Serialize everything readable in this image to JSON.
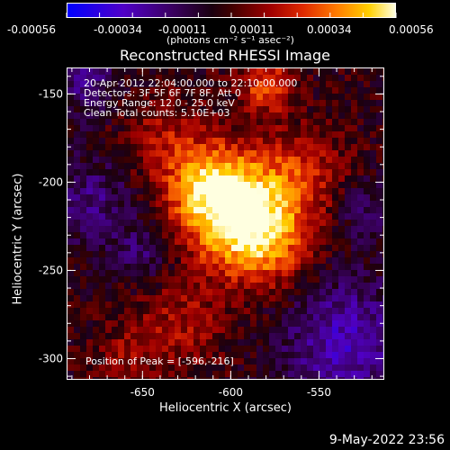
{
  "colorbar": {
    "tick_labels": [
      "-0.00056",
      "-0.00034",
      "-0.00011",
      "0.00011",
      "0.00034",
      "0.00056"
    ],
    "units": "(photons cm⁻² s⁻¹ asec⁻²)",
    "colors": [
      "#0000ff",
      "#5000c8",
      "#3a0060",
      "#1a0010",
      "#400000",
      "#a00000",
      "#e02a00",
      "#ff7a00",
      "#ffd000",
      "#ffffe0"
    ]
  },
  "annotations": {
    "line1": "20-Apr-2012 22:04:00.000 to 22:10:00.000",
    "line2": "Detectors: 3F 5F 6F 7F 8F, Att 0",
    "line3": "Energy Range: 12.0 - 25.0 keV",
    "line4": "Clean     Total counts: 5.10E+03",
    "peak": "Position of Peak = [-596,-216]"
  },
  "footer": {
    "date": "9-May-2022 23:56"
  },
  "chart_data": {
    "type": "heatmap",
    "title": "Reconstructed RHESSI Image",
    "xlabel": "Heliocentric X (arcsec)",
    "ylabel": "Heliocentric Y (arcsec)",
    "xlim": [
      -693,
      -513
    ],
    "ylim": [
      -312,
      -135
    ],
    "x_ticks": [
      -650,
      -600,
      -550
    ],
    "y_ticks": [
      -150,
      -200,
      -250,
      -300
    ],
    "x_tick_labels": [
      "-650",
      "-600",
      "-550"
    ],
    "y_tick_labels": [
      "-150",
      "-200",
      "-250",
      "-300"
    ],
    "colorbar_range": [
      -0.00056,
      0.00056
    ],
    "peak_position": [
      -596,
      -216
    ],
    "sources": [
      {
        "x": -596,
        "y": -216,
        "sigma": 22,
        "amp": 1.0
      },
      {
        "x": -615,
        "y": -200,
        "sigma": 16,
        "amp": 0.55
      },
      {
        "x": -580,
        "y": -235,
        "sigma": 18,
        "amp": 0.45
      },
      {
        "x": -580,
        "y": -145,
        "sigma": 10,
        "amp": 0.6
      },
      {
        "x": -560,
        "y": -195,
        "sigma": 18,
        "amp": 0.35
      },
      {
        "x": -640,
        "y": -175,
        "sigma": 16,
        "amp": 0.3
      },
      {
        "x": -630,
        "y": -280,
        "sigma": 18,
        "amp": 0.3
      },
      {
        "x": -660,
        "y": -300,
        "sigma": 12,
        "amp": 0.25
      }
    ],
    "negative_regions": [
      {
        "x": -535,
        "y": -290,
        "sigma": 25,
        "amp": 0.55
      },
      {
        "x": -680,
        "y": -210,
        "sigma": 18,
        "amp": 0.35
      },
      {
        "x": -685,
        "y": -140,
        "sigma": 15,
        "amp": 0.35
      },
      {
        "x": -650,
        "y": -240,
        "sigma": 12,
        "amp": 0.3
      },
      {
        "x": -525,
        "y": -215,
        "sigma": 12,
        "amp": 0.3
      }
    ]
  }
}
